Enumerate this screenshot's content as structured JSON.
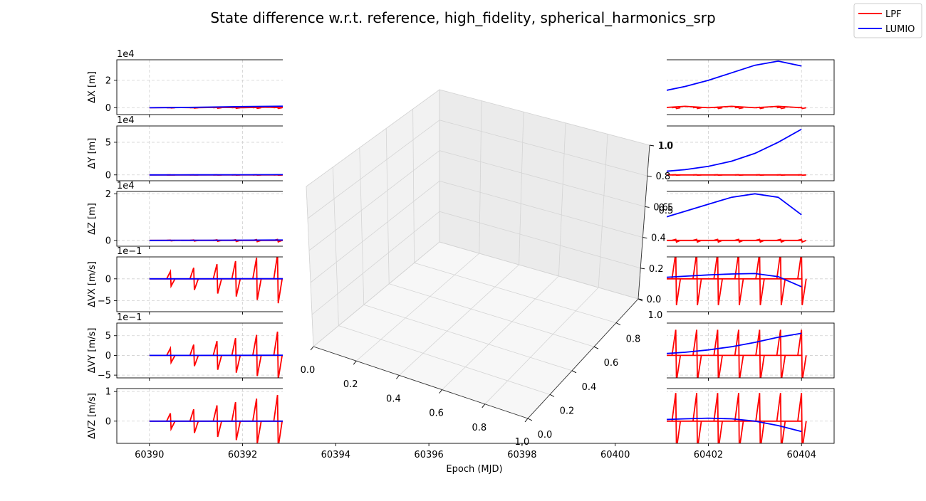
{
  "title": "State difference w.r.t. reference, high_fidelity, spherical_harmonics_srp",
  "legend": {
    "placement": "top-right",
    "entries": [
      {
        "label": "LPF",
        "color": "#ff0000"
      },
      {
        "label": "LUMIO",
        "color": "#0000ff"
      }
    ]
  },
  "chart_data": {
    "type": "line",
    "xlabel": "Epoch (MJD)",
    "xlim": [
      60389.3,
      60404.7
    ],
    "x_ticks": [
      "60390",
      "60392",
      "60394",
      "60396",
      "60398",
      "60400",
      "60402",
      "60404"
    ],
    "x_tick_values": [
      60390,
      60392,
      60394,
      60396,
      60398,
      60400,
      60402,
      60404
    ],
    "grid": true,
    "panels": [
      {
        "ylabel": "ΔX [m]",
        "offset_text": "1e4",
        "ylim": [
          -0.5,
          3.5
        ],
        "y_ticks": [
          "0",
          "2"
        ],
        "y_tick_values": [
          0,
          2
        ],
        "series": [
          {
            "name": "LPF",
            "x": [
              60390,
              60390.5,
              60391,
              60391.5,
              60392,
              60392.5,
              60393,
              60401,
              60401.5,
              60402,
              60402.5,
              60403,
              60403.5,
              60404
            ],
            "y": [
              0,
              0.02,
              0,
              0.03,
              0,
              0.04,
              0,
              0,
              0.1,
              0,
              0.1,
              0,
              0.1,
              0
            ],
            "amp": 0.06
          },
          {
            "name": "LUMIO",
            "x": [
              60390,
              60390.5,
              60391,
              60392,
              60393,
              60401,
              60401.5,
              60402,
              60402.5,
              60403,
              60403.5,
              60404
            ],
            "y": [
              0,
              0.01,
              0.03,
              0.08,
              0.12,
              1.2,
              1.55,
              2.0,
              2.55,
              3.1,
              3.4,
              3.05
            ],
            "amp": 0
          }
        ]
      },
      {
        "ylabel": "ΔY [m]",
        "offset_text": "1e4",
        "ylim": [
          -0.9,
          7.5
        ],
        "y_ticks": [
          "0",
          "5"
        ],
        "y_tick_values": [
          0,
          5
        ],
        "series": [
          {
            "name": "LPF",
            "x": [
              60390,
              60391,
              60392,
              60393,
              60401,
              60402,
              60403,
              60404
            ],
            "y": [
              0,
              0,
              0,
              0,
              0,
              0,
              0,
              0
            ],
            "amp": 0.05
          },
          {
            "name": "LUMIO",
            "x": [
              60390,
              60391,
              60392,
              60393,
              60401,
              60401.5,
              60402,
              60402.5,
              60403,
              60403.5,
              60404
            ],
            "y": [
              0,
              0.01,
              0.02,
              0.04,
              0.5,
              0.8,
              1.3,
              2.1,
              3.3,
              5.0,
              7.0
            ],
            "amp": 0
          }
        ]
      },
      {
        "ylabel": "ΔZ [m]",
        "offset_text": "1e4",
        "ylim": [
          -0.25,
          2.1
        ],
        "y_ticks": [
          "0",
          "2"
        ],
        "y_tick_values": [
          0,
          2
        ],
        "series": [
          {
            "name": "LPF",
            "x": [
              60390,
              60391,
              60392,
              60393,
              60401,
              60402,
              60403,
              60404
            ],
            "y": [
              0,
              0,
              0,
              0,
              0,
              0,
              0,
              0
            ],
            "amp": 0.07
          },
          {
            "name": "LUMIO",
            "x": [
              60390,
              60391,
              60392,
              60393,
              60401,
              60401.5,
              60402,
              60402.5,
              60403,
              60403.5,
              60404
            ],
            "y": [
              0,
              0.005,
              0.01,
              0.02,
              0.95,
              1.25,
              1.55,
              1.85,
              2.0,
              1.85,
              1.1
            ],
            "amp": 0
          }
        ]
      },
      {
        "ylabel": "ΔVX [m/s]",
        "offset_text": "1e−1",
        "ylim": [
          -7.5,
          5
        ],
        "y_ticks": [
          "−5",
          "0"
        ],
        "y_tick_values": [
          -5,
          0
        ],
        "series": [
          {
            "name": "LPF",
            "x": [
              60390,
              60391,
              60392,
              60393,
              60401,
              60402,
              60403,
              60404
            ],
            "y": [
              0,
              0,
              0,
              0,
              0,
              0,
              0,
              0
            ],
            "amp": 6.0
          },
          {
            "name": "LUMIO",
            "x": [
              60390,
              60391,
              60392,
              60393,
              60401,
              60401.5,
              60402,
              60402.5,
              60403,
              60403.5,
              60404
            ],
            "y": [
              0,
              0,
              0.01,
              0.02,
              0.3,
              0.6,
              0.9,
              1.1,
              1.2,
              0.5,
              -1.8
            ],
            "amp": 0
          }
        ]
      },
      {
        "ylabel": "ΔVY [m/s]",
        "offset_text": "1e−1",
        "ylim": [
          -5.7,
          8.2
        ],
        "y_ticks": [
          "−5",
          "0",
          "5"
        ],
        "y_tick_values": [
          -5,
          0,
          5
        ],
        "series": [
          {
            "name": "LPF",
            "x": [
              60390,
              60391,
              60392,
              60393,
              60401,
              60402,
              60403,
              60404
            ],
            "y": [
              0,
              0,
              0,
              0,
              0,
              0,
              0,
              0
            ],
            "amp": 6.5
          },
          {
            "name": "LUMIO",
            "x": [
              60390,
              60391,
              60392,
              60393,
              60401,
              60401.5,
              60402,
              60402.5,
              60403,
              60403.5,
              60404
            ],
            "y": [
              0,
              0,
              0.02,
              0.05,
              0.4,
              0.8,
              1.4,
              2.2,
              3.3,
              4.6,
              5.6
            ],
            "amp": 0
          }
        ]
      },
      {
        "ylabel": "ΔVZ [m/s]",
        "offset_text": "",
        "ylim": [
          -0.75,
          1.1
        ],
        "y_ticks": [
          "0",
          "1"
        ],
        "y_tick_values": [
          0,
          1
        ],
        "series": [
          {
            "name": "LPF",
            "x": [
              60390,
              60391,
              60392,
              60393,
              60401,
              60402,
              60403,
              60404
            ],
            "y": [
              0,
              0,
              0,
              0,
              0,
              0,
              0,
              0
            ],
            "amp": 0.95
          },
          {
            "name": "LUMIO",
            "x": [
              60390,
              60391,
              60392,
              60393,
              60401,
              60401.5,
              60402,
              60402.5,
              60403,
              60403.5,
              60404
            ],
            "y": [
              0,
              0,
              0,
              0,
              0.05,
              0.08,
              0.1,
              0.08,
              0.0,
              -0.15,
              -0.35
            ],
            "amp": 0
          }
        ]
      }
    ],
    "inset_3d": {
      "type": "3d-empty-axes",
      "x_ticks": [
        "0.0",
        "0.2",
        "0.4",
        "0.6",
        "0.8",
        "1.0"
      ],
      "y_ticks": [
        "0.0",
        "0.2",
        "0.4",
        "0.6",
        "0.8",
        "1.0"
      ],
      "z_ticks": [
        "0.0",
        "0.2",
        "0.4",
        "0.6",
        "0.8",
        "1.0"
      ],
      "z_ticks_overlap": [
        "0.5",
        "0.5",
        "1.0"
      ]
    }
  }
}
